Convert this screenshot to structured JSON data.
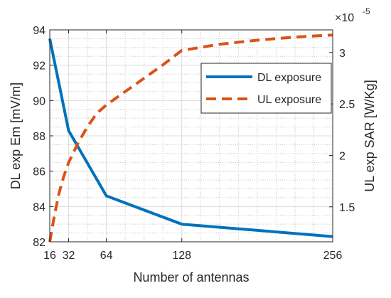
{
  "chart_data": {
    "type": "line",
    "title": "",
    "xlabel": "Number of antennas",
    "ylabel_left": "DL exp Em [mV/m]",
    "ylabel_right": "UL exp SAR [W/Kg]",
    "right_axis_multiplier": "×10",
    "right_axis_exponent": "-5",
    "xlim": [
      16,
      256
    ],
    "ylim_left": [
      82,
      94
    ],
    "ylim_right": [
      1.16,
      3.22
    ],
    "x_ticks": [
      16,
      32,
      64,
      128,
      256
    ],
    "x_tick_labels": [
      "16",
      "32",
      "64",
      "128",
      "256"
    ],
    "y_left_ticks": [
      82,
      84,
      86,
      88,
      90,
      92,
      94
    ],
    "y_left_tick_labels": [
      "82",
      "84",
      "86",
      "88",
      "90",
      "92",
      "94"
    ],
    "y_right_ticks": [
      1.5,
      2,
      2.5,
      3
    ],
    "y_right_tick_labels": [
      "1.5",
      "2",
      "2.5",
      "3"
    ],
    "grid": true,
    "legend_position": "top-right",
    "series": [
      {
        "name": "DL exposure",
        "axis": "left",
        "style": "solid",
        "color": "#0072BD",
        "x": [
          16,
          32,
          64,
          128,
          256
        ],
        "y": [
          93.5,
          88.3,
          84.6,
          83.0,
          82.3
        ]
      },
      {
        "name": "UL exposure",
        "axis": "right",
        "style": "dashed",
        "color": "#D95319",
        "x": [
          16,
          20,
          24,
          28,
          32,
          40,
          48,
          56,
          64,
          80,
          96,
          112,
          128,
          160,
          192,
          224,
          256
        ],
        "y": [
          1.16,
          1.42,
          1.64,
          1.8,
          1.93,
          2.12,
          2.28,
          2.41,
          2.49,
          2.62,
          2.75,
          2.88,
          3.02,
          3.08,
          3.12,
          3.15,
          3.17
        ]
      }
    ]
  }
}
